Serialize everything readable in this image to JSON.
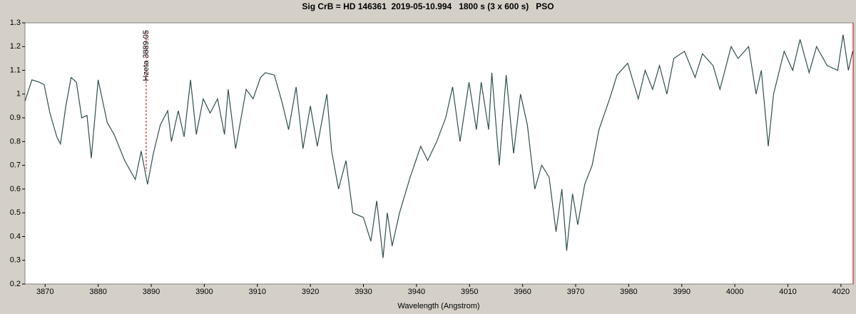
{
  "chart_data": {
    "type": "line",
    "title": "Sig CrB = HD 146361  2019-05-10.994   1800 s (3 x 600 s)   PSO",
    "x_label": "Wavelength (Angstrom)",
    "xlim": [
      3866.2,
      4022.3
    ],
    "ylim": [
      0.2,
      1.3
    ],
    "xticks": [
      3870,
      3880,
      3890,
      3900,
      3910,
      3920,
      3930,
      3940,
      3950,
      3960,
      3970,
      3980,
      3990,
      4000,
      4010,
      4020
    ],
    "yticks": [
      0.2,
      0.3,
      0.4,
      0.5,
      0.6,
      0.7,
      0.8,
      0.9,
      1,
      1.1,
      1.2,
      1.3
    ],
    "annotations": [
      {
        "label": "Hzeta 3889.05",
        "x": 3889.05,
        "color": "#c00000"
      }
    ],
    "series": [
      {
        "color": "#2f4f4f",
        "x": [
          3866.2,
          3867.5,
          3868.9,
          3869.8,
          3870.9,
          3872.2,
          3872.9,
          3873.9,
          3874.9,
          3875.9,
          3876.9,
          3877.9,
          3878.7,
          3880.0,
          3881.7,
          3883.0,
          3885.0,
          3887.0,
          3888.1,
          3889.3,
          3890.4,
          3891.7,
          3893.1,
          3893.8,
          3895.1,
          3896.2,
          3897.4,
          3898.5,
          3899.8,
          3901.1,
          3902.5,
          3903.8,
          3904.5,
          3905.9,
          3907.9,
          3909.2,
          3910.6,
          3911.5,
          3913.2,
          3914.6,
          3915.9,
          3917.3,
          3918.6,
          3920.0,
          3921.3,
          3923.1,
          3924.0,
          3925.3,
          3926.7,
          3928.0,
          3930.0,
          3931.4,
          3932.5,
          3933.7,
          3934.5,
          3935.4,
          3936.8,
          3938.8,
          3940.8,
          3942.1,
          3943.8,
          3945.5,
          3946.8,
          3948.2,
          3949.9,
          3951.3,
          3952.2,
          3953.6,
          3954.2,
          3955.6,
          3956.9,
          3958.3,
          3959.6,
          3960.9,
          3962.3,
          3963.6,
          3965.0,
          3966.3,
          3967.4,
          3968.3,
          3969.4,
          3970.4,
          3971.7,
          3973.1,
          3974.4,
          3976.4,
          3977.8,
          3979.8,
          3981.8,
          3983.1,
          3984.5,
          3985.8,
          3987.2,
          3988.5,
          3990.5,
          3992.5,
          3993.9,
          3995.9,
          3997.2,
          3999.3,
          4000.6,
          4002.6,
          4004.0,
          4005.0,
          4006.3,
          4007.3,
          4009.3,
          4010.9,
          4012.3,
          4014.0,
          4015.4,
          4017.4,
          4019.4,
          4020.4,
          4021.4,
          4022.2
        ],
        "values": [
          0.97,
          1.06,
          1.05,
          1.04,
          0.92,
          0.82,
          0.79,
          0.95,
          1.07,
          1.05,
          0.9,
          0.91,
          0.73,
          1.06,
          0.88,
          0.83,
          0.72,
          0.64,
          0.76,
          0.62,
          0.75,
          0.87,
          0.93,
          0.8,
          0.93,
          0.82,
          1.06,
          0.83,
          0.98,
          0.92,
          0.98,
          0.83,
          1.02,
          0.77,
          1.02,
          0.98,
          1.07,
          1.09,
          1.08,
          0.97,
          0.85,
          1.03,
          0.77,
          0.95,
          0.78,
          1.0,
          0.76,
          0.6,
          0.72,
          0.5,
          0.48,
          0.38,
          0.55,
          0.31,
          0.5,
          0.36,
          0.5,
          0.65,
          0.78,
          0.72,
          0.8,
          0.9,
          1.03,
          0.8,
          1.05,
          0.85,
          1.05,
          0.85,
          1.09,
          0.7,
          1.08,
          0.75,
          1.0,
          0.87,
          0.6,
          0.7,
          0.65,
          0.42,
          0.6,
          0.34,
          0.58,
          0.45,
          0.62,
          0.7,
          0.85,
          0.98,
          1.08,
          1.13,
          0.98,
          1.1,
          1.02,
          1.12,
          1.0,
          1.15,
          1.18,
          1.07,
          1.17,
          1.12,
          1.02,
          1.2,
          1.15,
          1.2,
          1.0,
          1.1,
          0.78,
          1.0,
          1.18,
          1.1,
          1.23,
          1.09,
          1.2,
          1.12,
          1.1,
          1.25,
          1.1,
          1.18
        ]
      }
    ]
  }
}
